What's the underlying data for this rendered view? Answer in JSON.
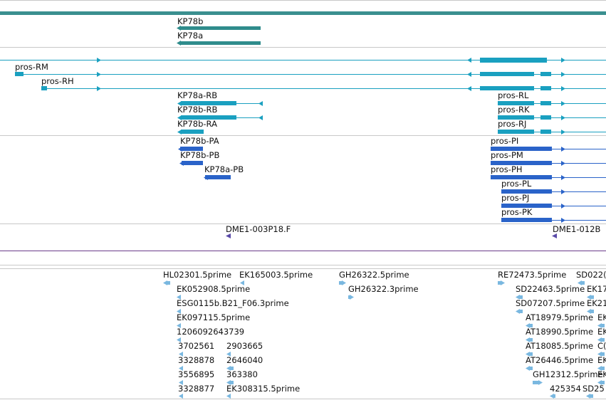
{
  "colors": {
    "top_band": "#3a8f8f",
    "teal": "#2f8c8c",
    "cyan": "#1aa0c0",
    "blue": "#2a63c9",
    "purple": "#5a4aa8",
    "lightblue": "#7ab8e0",
    "separator": "#c8c8c8",
    "purple_rule": "#6a3a8a"
  },
  "tracks": {
    "genes": {
      "labels": [
        "KP78b",
        "KP78a"
      ]
    },
    "transcripts": {
      "labels": [
        "pros-RM",
        "pros-RH",
        "KP78a-RB",
        "KP78b-RB",
        "KP78b-RA",
        "pros-RL",
        "pros-RK",
        "pros-RJ"
      ]
    },
    "proteins": {
      "labels": [
        "KP78b-PA",
        "KP78b-PB",
        "KP78a-PB",
        "pros-PI",
        "pros-PM",
        "pros-PH",
        "pros-PL",
        "pros-PJ",
        "pros-PK"
      ]
    },
    "clones": {
      "labels": [
        "DME1-003P18.F",
        "DME1-012B"
      ]
    },
    "ests": {
      "labels": [
        "HL02301.5prime",
        "EK165003.5prime",
        "GH26322.5prime",
        "RE72473.5prime",
        "SD022(",
        "EK052908.5prime",
        "GH26322.3prime",
        "SD22463.5prime",
        "EK17",
        "ESG0115b.B21_F06.3prime",
        "SD07207.5prime",
        "EK21",
        "EK097115.5prime",
        "AT18979.5prime",
        "EK",
        "1206092643739",
        "AT18990.5prime",
        "EK",
        "3702561",
        "2903665",
        "AT18085.5prime",
        "C(",
        "3328878",
        "2646040",
        "AT26446.5prime",
        "EK",
        "3556895",
        "363380",
        "GH12312.5prime",
        "EK",
        "3328877",
        "EK308315.5prime",
        "425354",
        "SD25"
      ]
    }
  }
}
